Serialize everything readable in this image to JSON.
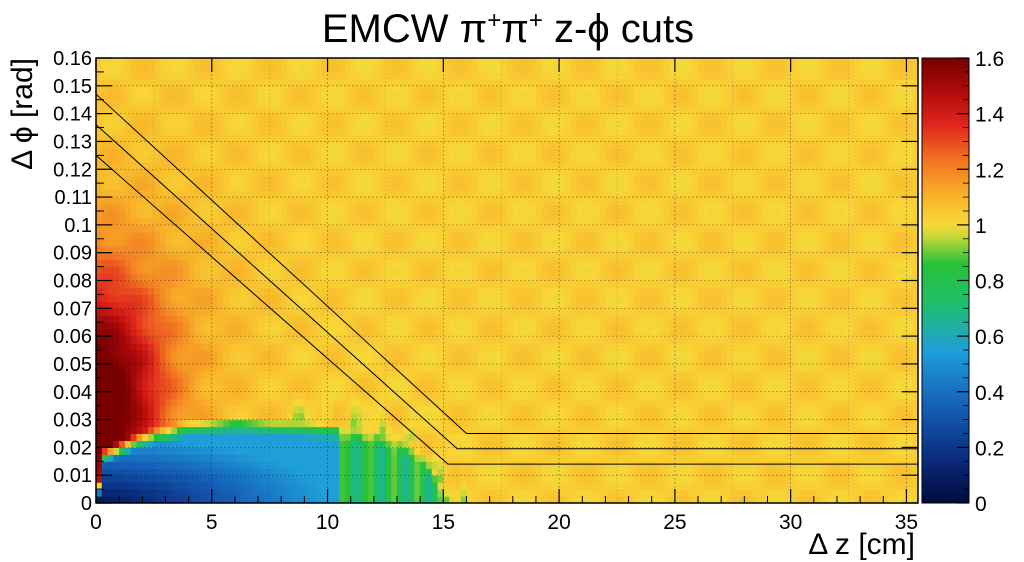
{
  "chart_data": {
    "type": "heatmap",
    "title": "EMCW π⁺π⁺  z-ϕ cuts",
    "title_parts": {
      "lead": "EMCW ",
      "pi": "π",
      "plus": "+",
      "tail": "  z-ϕ cuts"
    },
    "xlabel": "Δ z [cm]",
    "ylabel": "Δ ϕ [rad]",
    "xlim": [
      0,
      35.5
    ],
    "ylim": [
      0,
      0.16
    ],
    "zlim": [
      0,
      1.6
    ],
    "x_ticks": [
      "0",
      "5",
      "10",
      "15",
      "20",
      "25",
      "30",
      "35"
    ],
    "x_tick_values": [
      0,
      5,
      10,
      15,
      20,
      25,
      30,
      35
    ],
    "y_ticks": [
      "0",
      "0.01",
      "0.02",
      "0.03",
      "0.04",
      "0.05",
      "0.06",
      "0.07",
      "0.08",
      "0.09",
      "0.1",
      "0.11",
      "0.12",
      "0.13",
      "0.14",
      "0.15",
      "0.16"
    ],
    "y_tick_values": [
      0,
      0.01,
      0.02,
      0.03,
      0.04,
      0.05,
      0.06,
      0.07,
      0.08,
      0.09,
      0.1,
      0.11,
      0.12,
      0.13,
      0.14,
      0.15,
      0.16
    ],
    "z_ticks": [
      "0",
      "0.2",
      "0.4",
      "0.6",
      "0.8",
      "1",
      "1.2",
      "1.4",
      "1.6"
    ],
    "z_tick_values": [
      0,
      0.2,
      0.4,
      0.6,
      0.8,
      1.0,
      1.2,
      1.4,
      1.6
    ],
    "grid": true,
    "colorbar": "right",
    "colormap": [
      {
        "v": 0.0,
        "color": "#000a3c"
      },
      {
        "v": 0.15,
        "color": "#0a2a7a"
      },
      {
        "v": 0.35,
        "color": "#1560b8"
      },
      {
        "v": 0.55,
        "color": "#1f9fd8"
      },
      {
        "v": 0.72,
        "color": "#1fbf6a"
      },
      {
        "v": 0.86,
        "color": "#27c23a"
      },
      {
        "v": 0.96,
        "color": "#c8d838"
      },
      {
        "v": 1.0,
        "color": "#f8d838"
      },
      {
        "v": 1.1,
        "color": "#f8b42a"
      },
      {
        "v": 1.22,
        "color": "#f37a22"
      },
      {
        "v": 1.36,
        "color": "#e0261c"
      },
      {
        "v": 1.48,
        "color": "#b00a0a"
      },
      {
        "v": 1.6,
        "color": "#780000"
      }
    ],
    "cut_lines": [
      {
        "points": [
          [
            0,
            0.125
          ],
          [
            15.2,
            0.014
          ],
          [
            35.5,
            0.014
          ]
        ]
      },
      {
        "points": [
          [
            0,
            0.136
          ],
          [
            15.6,
            0.0195
          ],
          [
            35.5,
            0.0195
          ]
        ]
      },
      {
        "points": [
          [
            0,
            0.147
          ],
          [
            16.0,
            0.025
          ],
          [
            35.5,
            0.025
          ]
        ]
      }
    ],
    "description_regions": {
      "background_value": 1.03,
      "depletion_boundary_x": [
        0.3,
        2,
        4,
        6,
        8,
        10,
        12,
        14,
        15.5
      ],
      "depletion_boundary_y": [
        0.02,
        0.026,
        0.03,
        0.031,
        0.03,
        0.029,
        0.027,
        0.02,
        0.0
      ]
    }
  }
}
